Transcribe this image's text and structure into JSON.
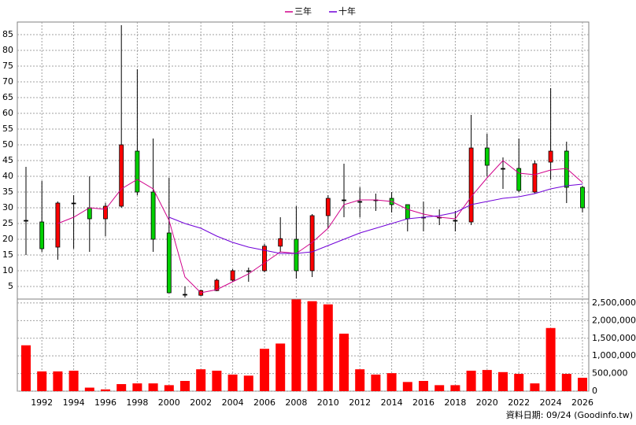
{
  "chart_data": [
    {
      "type": "candlestick",
      "open": [
        26,
        25.5,
        17.5,
        31.5,
        30,
        26.5,
        30.5,
        48,
        35,
        22,
        2.5,
        2.2,
        3.7,
        7,
        10,
        10,
        17.8,
        20,
        10,
        27.5,
        32.5,
        32,
        32.5,
        33,
        31,
        27,
        27,
        26,
        25.5,
        49,
        42.5,
        42.5,
        35,
        44.5,
        48,
        36.5
      ],
      "high": [
        43,
        38.5,
        32,
        34,
        40,
        31.5,
        88,
        74,
        52,
        39.5,
        5,
        4,
        7.5,
        10.5,
        11,
        18.5,
        27,
        30.5,
        28,
        34,
        44,
        36.5,
        34.5,
        35,
        31,
        32,
        29.5,
        29,
        59.5,
        53.5,
        46,
        52,
        45,
        68,
        51,
        37
      ],
      "low": [
        15,
        16,
        13.5,
        17,
        16,
        21,
        30,
        34,
        16,
        3,
        1.5,
        2,
        3.5,
        6.5,
        6.5,
        9.5,
        16,
        7.5,
        8,
        23.5,
        27,
        27,
        29,
        28.5,
        22.5,
        22.5,
        24.5,
        22.5,
        24.5,
        40,
        36,
        35,
        34.5,
        39,
        31.5,
        28.5
      ],
      "close": [
        26,
        17,
        31.5,
        31.5,
        26.5,
        30.5,
        50,
        35,
        20,
        3,
        2.5,
        3.7,
        7,
        10,
        10,
        17.8,
        20.2,
        10,
        27.5,
        33,
        32.5,
        32,
        32.5,
        31,
        26.5,
        27,
        27,
        26,
        49,
        43.5,
        42.5,
        35.5,
        44,
        48,
        36.5,
        30
      ],
      "series": [
        {
          "name": "三年",
          "color": "#d0008a",
          "values": [
            null,
            null,
            25,
            27,
            30,
            29.5,
            36,
            39,
            36,
            26,
            8,
            3,
            4,
            6.5,
            9,
            12.5,
            16,
            15.5,
            19,
            23.5,
            31,
            32.5,
            32.5,
            32,
            29.5,
            28,
            27,
            26.5,
            33.5,
            39.5,
            45,
            41,
            40.5,
            42,
            42.5,
            38
          ]
        },
        {
          "name": "十年",
          "color": "#7000d8",
          "values": [
            null,
            null,
            null,
            null,
            null,
            null,
            null,
            null,
            null,
            27,
            25,
            23.5,
            21,
            19,
            17.5,
            16.5,
            15.5,
            15.5,
            16,
            18,
            20,
            22,
            23.5,
            25,
            26.5,
            27,
            27.5,
            28.5,
            31,
            32,
            33,
            33.5,
            34.5,
            36,
            37,
            37.5
          ]
        }
      ],
      "ylim": [
        1,
        89
      ],
      "yticks": [
        5,
        10,
        15,
        20,
        25,
        30,
        35,
        40,
        45,
        50,
        55,
        60,
        65,
        70,
        75,
        80,
        85
      ],
      "grid": true
    },
    {
      "type": "bar",
      "color": "#ff0000",
      "categories": [
        null,
        "1992",
        null,
        "1994",
        null,
        "1996",
        null,
        "1998",
        null,
        "2000",
        null,
        "2002",
        null,
        "2004",
        null,
        "2006",
        null,
        "2008",
        null,
        "2010",
        null,
        "2012",
        null,
        "2014",
        null,
        "2016",
        null,
        "2018",
        null,
        "2020",
        null,
        "2022",
        null,
        "2024",
        null,
        "2026"
      ],
      "values": [
        1300000,
        560000,
        560000,
        580000,
        100000,
        50000,
        200000,
        220000,
        220000,
        170000,
        290000,
        620000,
        580000,
        470000,
        440000,
        1200000,
        1350000,
        2600000,
        2550000,
        2460000,
        1630000,
        620000,
        470000,
        510000,
        260000,
        290000,
        170000,
        170000,
        580000,
        600000,
        540000,
        490000,
        220000,
        1790000,
        490000,
        380000
      ],
      "ylim": [
        0,
        2610000
      ],
      "yticks": [
        0,
        {
          "value": 500000,
          "label": "500,000"
        },
        {
          "value": 1000000,
          "label": "1,000,000"
        },
        {
          "value": 1500000,
          "label": "1,500,000"
        },
        {
          "value": 2000000,
          "label": "2,000,000"
        },
        {
          "value": 2500000,
          "label": "2,500,000"
        }
      ],
      "grid": true,
      "source": "資料日期: 09/24  (Goodinfo.tw)"
    }
  ]
}
